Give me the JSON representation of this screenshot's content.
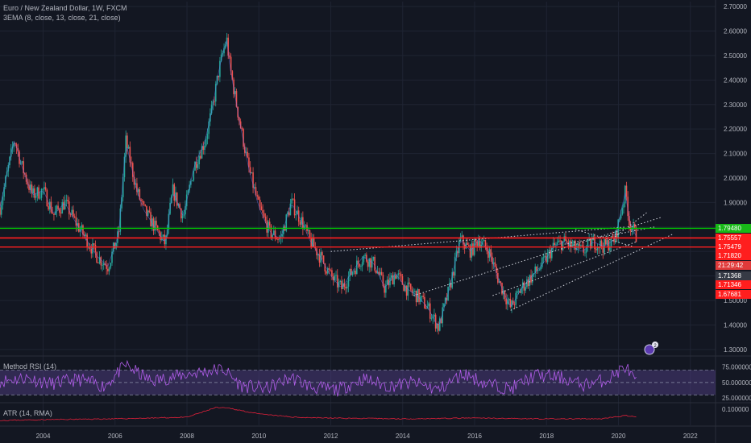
{
  "header": {
    "symbol_title": "Euro / New Zealand Dollar, 1W, FXCM",
    "ema_label": "3EMA (8, close, 13, close, 21, close)"
  },
  "rsi_panel": {
    "label": "Method RSI (14)"
  },
  "atr_panel": {
    "label": "ATR (14, RMA)"
  },
  "colors": {
    "background": "#131722",
    "up_candle": "#26a69a",
    "down_candle": "#ef5350",
    "green_line": "#00c800",
    "red_line": "#ff1e1e",
    "rsi_line": "#b05ce8",
    "rsi_band": "#4b3a7a",
    "atr_line": "#e0203a"
  },
  "event_badge": {
    "count": "2"
  },
  "chart_data": [
    {
      "type": "line",
      "title": "Euro / New Zealand Dollar, 1W, FXCM",
      "x_ticks": [
        "2004",
        "2006",
        "2008",
        "2010",
        "2012",
        "2014",
        "2016",
        "2018",
        "2020",
        "2022"
      ],
      "xlim": [
        2002.8,
        2022.7
      ],
      "y_ticks": [
        "2.70000",
        "2.60000",
        "2.50000",
        "2.40000",
        "2.30000",
        "2.20000",
        "2.10000",
        "2.00000",
        "1.90000",
        "1.80000",
        "1.70000",
        "1.60000",
        "1.50000",
        "1.40000",
        "1.30000"
      ],
      "ylim": [
        1.28,
        2.72
      ],
      "series": [
        {
          "x": [
            2002.8,
            2003.2,
            2003.4,
            2003.7,
            2004.0,
            2004.3,
            2004.6,
            2004.9,
            2005.2,
            2005.5,
            2005.8,
            2006.1,
            2006.3,
            2006.6,
            2006.8,
            2007.1,
            2007.4,
            2007.6,
            2007.9,
            2008.2,
            2008.5,
            2008.7,
            2008.9,
            2009.1,
            2009.2,
            2009.4,
            2009.7,
            2010.0,
            2010.3,
            2010.6,
            2010.9,
            2011.2,
            2011.4,
            2011.7,
            2012.0,
            2012.3,
            2012.6,
            2012.9,
            2013.2,
            2013.5,
            2013.8,
            2014.1,
            2014.4,
            2014.7,
            2015.0,
            2015.3,
            2015.6,
            2015.9,
            2016.1,
            2016.4,
            2016.7,
            2017.0,
            2017.3,
            2017.6,
            2017.9,
            2018.2,
            2018.5,
            2018.7,
            2019.0,
            2019.3,
            2019.6,
            2019.9,
            2020.2,
            2020.3,
            2020.5
          ],
          "values": [
            1.88,
            2.16,
            2.05,
            1.93,
            1.95,
            1.85,
            1.9,
            1.82,
            1.75,
            1.68,
            1.64,
            1.77,
            2.15,
            1.95,
            1.87,
            1.8,
            1.73,
            1.95,
            1.84,
            2.05,
            2.15,
            2.28,
            2.45,
            2.57,
            2.45,
            2.28,
            2.05,
            1.88,
            1.78,
            1.75,
            1.9,
            1.82,
            1.75,
            1.68,
            1.6,
            1.55,
            1.62,
            1.68,
            1.65,
            1.55,
            1.61,
            1.55,
            1.52,
            1.47,
            1.39,
            1.55,
            1.75,
            1.7,
            1.75,
            1.7,
            1.57,
            1.47,
            1.55,
            1.6,
            1.65,
            1.72,
            1.74,
            1.72,
            1.7,
            1.74,
            1.72,
            1.75,
            1.95,
            1.82,
            1.76
          ]
        }
      ],
      "horizontal_levels": [
        {
          "price": "1.79480",
          "color": "green"
        },
        {
          "price": "1.75557",
          "color": "red"
        },
        {
          "price": "1.75479",
          "color": "red"
        },
        {
          "price": "1.71820",
          "color": "red"
        }
      ],
      "price_labels": [
        "1.79480",
        "1.75557",
        "1.75479",
        "1.71820",
        "21:29:42",
        "1.71368",
        "1.71346",
        "1.67681"
      ]
    },
    {
      "type": "line",
      "title": "Method RSI (14)",
      "y_ticks": [
        "75.000000",
        "50.000000",
        "25.000000"
      ],
      "ylim": [
        20,
        90
      ],
      "series": [
        {
          "x": [
            2002.8,
            2003.5,
            2004.2,
            2005.0,
            2005.7,
            2006.3,
            2007.0,
            2007.7,
            2008.3,
            2009.0,
            2009.5,
            2010.2,
            2010.9,
            2011.5,
            2012.2,
            2012.9,
            2013.6,
            2014.3,
            2015.0,
            2015.7,
            2016.3,
            2017.0,
            2017.7,
            2018.4,
            2019.0,
            2019.7,
            2020.2,
            2020.5
          ],
          "values": [
            52,
            58,
            48,
            55,
            44,
            78,
            52,
            60,
            66,
            72,
            45,
            40,
            58,
            42,
            38,
            56,
            44,
            50,
            38,
            65,
            48,
            40,
            62,
            58,
            46,
            55,
            76,
            48
          ]
        }
      ]
    },
    {
      "type": "line",
      "title": "ATR (14, RMA)",
      "y_ticks": [
        "0.100000"
      ],
      "ylim": [
        0,
        0.13
      ],
      "series": [
        {
          "x": [
            2002.8,
            2004.0,
            2006.0,
            2008.0,
            2008.8,
            2009.2,
            2010.0,
            2011.0,
            2012.0,
            2014.0,
            2016.0,
            2018.0,
            2019.5,
            2020.2,
            2020.5
          ],
          "values": [
            0.03,
            0.035,
            0.04,
            0.05,
            0.11,
            0.105,
            0.07,
            0.05,
            0.045,
            0.04,
            0.045,
            0.04,
            0.04,
            0.06,
            0.05
          ]
        }
      ]
    }
  ]
}
